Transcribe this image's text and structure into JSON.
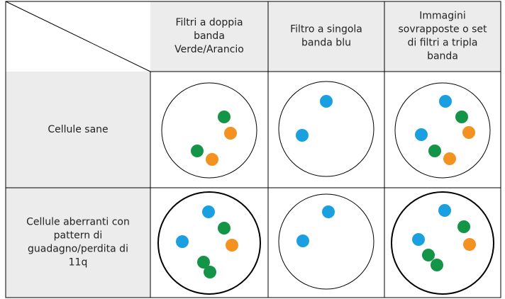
{
  "table": {
    "columns": [
      [
        "Filtri a doppia",
        "banda",
        "Verde/Arancio"
      ],
      [
        "Filtro a singola",
        "banda blu"
      ],
      [
        "Immagini",
        "sovrapposte o set",
        "di filtri a tripla",
        "banda"
      ]
    ],
    "rows": [
      [
        "Cellule sane"
      ],
      [
        "Cellule aberranti con",
        "pattern di",
        "guadagno/perdita di",
        "11q"
      ]
    ]
  }
}
